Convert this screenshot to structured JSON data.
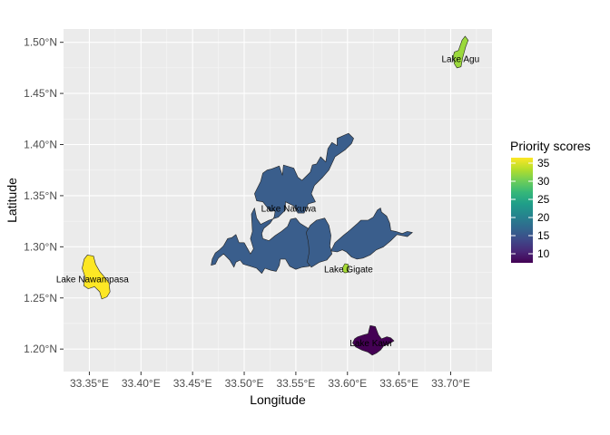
{
  "chart_data": {
    "type": "map",
    "xlabel": "Longitude",
    "ylabel": "Latitude",
    "xlim": [
      33.325,
      33.74
    ],
    "ylim": [
      1.178,
      1.513
    ],
    "x_ticks": [
      {
        "value": 33.35,
        "label": "33.35°E"
      },
      {
        "value": 33.4,
        "label": "33.40°E"
      },
      {
        "value": 33.45,
        "label": "33.45°E"
      },
      {
        "value": 33.5,
        "label": "33.50°E"
      },
      {
        "value": 33.55,
        "label": "33.55°E"
      },
      {
        "value": 33.6,
        "label": "33.60°E"
      },
      {
        "value": 33.65,
        "label": "33.65°E"
      },
      {
        "value": 33.7,
        "label": "33.70°E"
      }
    ],
    "y_ticks": [
      {
        "value": 1.2,
        "label": "1.20°N"
      },
      {
        "value": 1.25,
        "label": "1.25°N"
      },
      {
        "value": 1.3,
        "label": "1.30°N"
      },
      {
        "value": 1.35,
        "label": "1.35°N"
      },
      {
        "value": 1.4,
        "label": "1.40°N"
      },
      {
        "value": 1.45,
        "label": "1.45°N"
      },
      {
        "value": 1.5,
        "label": "1.50°N"
      }
    ],
    "grid": true,
    "legend": {
      "title": "Priority scores",
      "position": "right",
      "min": 7.5,
      "max": 36.5,
      "ticks": [
        10,
        15,
        20,
        25,
        30,
        35
      ],
      "palette": "viridis"
    },
    "colors": {
      "panel_bg": "#ebebeb",
      "grid_major": "#ffffff",
      "lake_outline": "#222222",
      "viridis": [
        "#440154",
        "#482878",
        "#3e4989",
        "#31688e",
        "#26828e",
        "#1f9e89",
        "#35b779",
        "#6ece58",
        "#b5de2b",
        "#fde725"
      ]
    },
    "lakes": [
      {
        "label": "Lake Agu",
        "score": 29,
        "color": "#9bd93c",
        "label_pos": [
          33.7095,
          1.4835
        ],
        "polygons": [
          [
            [
              33.7035,
              1.4905
            ],
            [
              33.7075,
              1.492
            ],
            [
              33.711,
              1.502
            ],
            [
              33.714,
              1.506
            ],
            [
              33.717,
              1.502
            ],
            [
              33.7145,
              1.4955
            ],
            [
              33.7115,
              1.4845
            ],
            [
              33.71,
              1.476
            ],
            [
              33.706,
              1.475
            ],
            [
              33.7035,
              1.479
            ],
            [
              33.7025,
              1.486
            ]
          ]
        ]
      },
      {
        "label": "Lake Nawampasa",
        "score": 36,
        "color": "#fde725",
        "label_pos": [
          33.353,
          1.268
        ],
        "polygons": [
          [
            [
              33.345,
              1.288
            ],
            [
              33.348,
              1.292
            ],
            [
              33.354,
              1.291
            ],
            [
              33.356,
              1.283
            ],
            [
              33.36,
              1.276
            ],
            [
              33.365,
              1.27
            ],
            [
              33.369,
              1.265
            ],
            [
              33.37,
              1.256
            ],
            [
              33.367,
              1.251
            ],
            [
              33.362,
              1.249
            ],
            [
              33.36,
              1.256
            ],
            [
              33.355,
              1.261
            ],
            [
              33.349,
              1.259
            ],
            [
              33.3445,
              1.262
            ],
            [
              33.346,
              1.27
            ],
            [
              33.343,
              1.279
            ]
          ]
        ]
      },
      {
        "label": "Lake Nakuwa",
        "score": 16,
        "color": "#3a5e8c",
        "label_pos": [
          33.543,
          1.337
        ],
        "polygons": [
          [
            [
              33.526,
              1.376
            ],
            [
              33.534,
              1.379
            ],
            [
              33.537,
              1.37
            ],
            [
              33.538,
              1.38
            ],
            [
              33.548,
              1.377
            ],
            [
              33.552,
              1.368
            ],
            [
              33.556,
              1.365
            ],
            [
              33.564,
              1.373
            ],
            [
              33.566,
              1.38
            ],
            [
              33.57,
              1.381
            ],
            [
              33.574,
              1.388
            ],
            [
              33.579,
              1.383
            ],
            [
              33.581,
              1.396
            ],
            [
              33.585,
              1.402
            ],
            [
              33.59,
              1.399
            ],
            [
              33.59,
              1.406
            ],
            [
              33.601,
              1.411
            ],
            [
              33.606,
              1.406
            ],
            [
              33.604,
              1.401
            ],
            [
              33.598,
              1.395
            ],
            [
              33.588,
              1.388
            ],
            [
              33.582,
              1.375
            ],
            [
              33.576,
              1.368
            ],
            [
              33.568,
              1.36
            ],
            [
              33.565,
              1.352
            ],
            [
              33.569,
              1.344
            ],
            [
              33.562,
              1.342
            ],
            [
              33.558,
              1.333
            ],
            [
              33.552,
              1.333
            ],
            [
              33.548,
              1.34
            ],
            [
              33.54,
              1.344
            ],
            [
              33.54,
              1.336
            ],
            [
              33.533,
              1.329
            ],
            [
              33.524,
              1.326
            ],
            [
              33.516,
              1.322
            ],
            [
              33.512,
              1.328
            ],
            [
              33.51,
              1.338
            ],
            [
              33.507,
              1.332
            ],
            [
              33.508,
              1.315
            ],
            [
              33.506,
              1.308
            ],
            [
              33.509,
              1.298
            ],
            [
              33.506,
              1.293
            ],
            [
              33.5,
              1.304
            ],
            [
              33.495,
              1.304
            ],
            [
              33.492,
              1.312
            ],
            [
              33.488,
              1.309
            ],
            [
              33.484,
              1.308
            ],
            [
              33.48,
              1.301
            ],
            [
              33.476,
              1.297
            ],
            [
              33.472,
              1.294
            ],
            [
              33.469,
              1.288
            ],
            [
              33.468,
              1.282
            ],
            [
              33.472,
              1.283
            ],
            [
              33.475,
              1.289
            ],
            [
              33.48,
              1.293
            ],
            [
              33.486,
              1.287
            ],
            [
              33.49,
              1.28
            ],
            [
              33.492,
              1.285
            ],
            [
              33.496,
              1.287
            ],
            [
              33.499,
              1.283
            ],
            [
              33.506,
              1.281
            ],
            [
              33.512,
              1.279
            ],
            [
              33.517,
              1.274
            ],
            [
              33.52,
              1.279
            ],
            [
              33.526,
              1.277
            ],
            [
              33.531,
              1.276
            ],
            [
              33.534,
              1.282
            ],
            [
              33.535,
              1.288
            ],
            [
              33.54,
              1.288
            ],
            [
              33.544,
              1.281
            ],
            [
              33.55,
              1.278
            ],
            [
              33.556,
              1.28
            ],
            [
              33.563,
              1.281
            ],
            [
              33.566,
              1.288
            ],
            [
              33.569,
              1.29
            ],
            [
              33.57,
              1.298
            ],
            [
              33.568,
              1.306
            ],
            [
              33.565,
              1.313
            ],
            [
              33.562,
              1.318
            ],
            [
              33.554,
              1.323
            ],
            [
              33.55,
              1.328
            ],
            [
              33.545,
              1.327
            ],
            [
              33.542,
              1.32
            ],
            [
              33.536,
              1.315
            ],
            [
              33.53,
              1.311
            ],
            [
              33.524,
              1.306
            ],
            [
              33.518,
              1.308
            ],
            [
              33.517,
              1.313
            ],
            [
              33.519,
              1.318
            ],
            [
              33.525,
              1.323
            ],
            [
              33.529,
              1.329
            ],
            [
              33.53,
              1.335
            ],
            [
              33.525,
              1.335
            ],
            [
              33.518,
              1.344
            ],
            [
              33.512,
              1.345
            ],
            [
              33.51,
              1.352
            ],
            [
              33.516,
              1.364
            ],
            [
              33.518,
              1.372
            ],
            [
              33.522,
              1.375
            ]
          ],
          [
            [
              33.564,
              1.321
            ],
            [
              33.57,
              1.326
            ],
            [
              33.578,
              1.328
            ],
            [
              33.582,
              1.321
            ],
            [
              33.584,
              1.311
            ],
            [
              33.583,
              1.301
            ],
            [
              33.585,
              1.293
            ],
            [
              33.58,
              1.287
            ],
            [
              33.573,
              1.285
            ],
            [
              33.565,
              1.28
            ],
            [
              33.561,
              1.285
            ],
            [
              33.563,
              1.295
            ],
            [
              33.562,
              1.305
            ],
            [
              33.56,
              1.314
            ]
          ],
          [
            [
              33.584,
              1.296
            ],
            [
              33.588,
              1.304
            ],
            [
              33.596,
              1.311
            ],
            [
              33.602,
              1.316
            ],
            [
              33.61,
              1.323
            ],
            [
              33.613,
              1.326
            ],
            [
              33.62,
              1.326
            ],
            [
              33.625,
              1.329
            ],
            [
              33.629,
              1.336
            ],
            [
              33.632,
              1.338
            ],
            [
              33.633,
              1.334
            ],
            [
              33.638,
              1.33
            ],
            [
              33.641,
              1.323
            ],
            [
              33.642,
              1.316
            ],
            [
              33.647,
              1.315
            ],
            [
              33.653,
              1.313
            ],
            [
              33.658,
              1.315
            ],
            [
              33.663,
              1.314
            ],
            [
              33.658,
              1.31
            ],
            [
              33.648,
              1.312
            ],
            [
              33.642,
              1.306
            ],
            [
              33.635,
              1.3
            ],
            [
              33.628,
              1.297
            ],
            [
              33.622,
              1.292
            ],
            [
              33.615,
              1.289
            ],
            [
              33.609,
              1.288
            ],
            [
              33.604,
              1.29
            ],
            [
              33.599,
              1.295
            ],
            [
              33.595,
              1.297
            ],
            [
              33.59,
              1.295
            ]
          ]
        ]
      },
      {
        "label": "Lake Gigate",
        "score": 29,
        "color": "#a6db35",
        "label_pos": [
          33.601,
          1.2775
        ],
        "polygons": [
          [
            [
              33.595,
              1.279
            ],
            [
              33.5975,
              1.2835
            ],
            [
              33.6005,
              1.283
            ],
            [
              33.6015,
              1.279
            ],
            [
              33.6005,
              1.275
            ],
            [
              33.5975,
              1.2745
            ],
            [
              33.5955,
              1.276
            ]
          ]
        ]
      },
      {
        "label": "Lake Kawi",
        "score": 8,
        "color": "#440154",
        "label_pos": [
          33.6225,
          1.2055
        ],
        "polygons": [
          [
            [
              33.61,
              1.212
            ],
            [
              33.616,
              1.214
            ],
            [
              33.62,
              1.215
            ],
            [
              33.622,
              1.223
            ],
            [
              33.627,
              1.222
            ],
            [
              33.63,
              1.214
            ],
            [
              33.633,
              1.21
            ],
            [
              33.638,
              1.212
            ],
            [
              33.642,
              1.211
            ],
            [
              33.645,
              1.208
            ],
            [
              33.64,
              1.205
            ],
            [
              33.635,
              1.203
            ],
            [
              33.632,
              1.199
            ],
            [
              33.628,
              1.196
            ],
            [
              33.624,
              1.194
            ],
            [
              33.62,
              1.197
            ],
            [
              33.614,
              1.199
            ],
            [
              33.608,
              1.202
            ],
            [
              33.605,
              1.206
            ],
            [
              33.607,
              1.21
            ]
          ]
        ]
      }
    ]
  }
}
